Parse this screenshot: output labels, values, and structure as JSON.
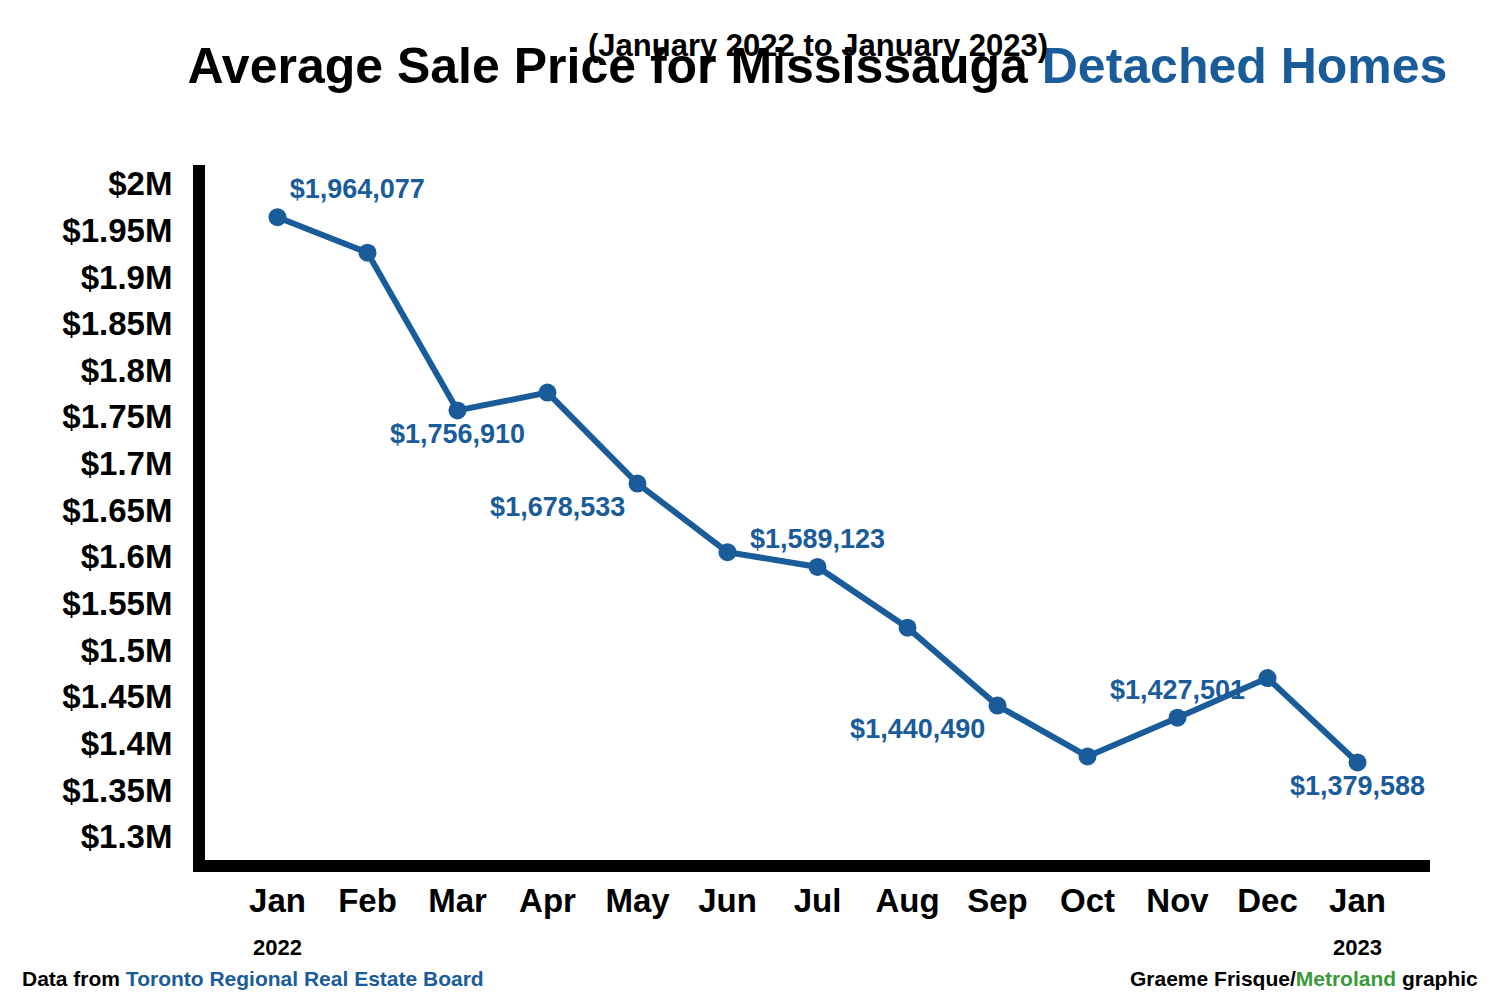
{
  "chart_data": {
    "type": "line",
    "title": "Average Sale Price for Mississauga Detached Homes",
    "title_highlight": "Detached Homes",
    "subtitle": "(January 2022 to January 2023)",
    "source": "Data from Toronto Regional Real Estate Board",
    "source_highlight": "Toronto Regional Real Estate Board",
    "credit": "Graeme Frisque/Metroland graphic",
    "credit_highlight": "Metroland",
    "categories": [
      "Jan 2022",
      "Feb",
      "Mar",
      "Apr",
      "May",
      "Jun",
      "Jul",
      "Aug",
      "Sep",
      "Oct",
      "Nov",
      "Dec",
      "Jan 2023"
    ],
    "values": [
      1964077,
      1926000,
      1756910,
      1776000,
      1678533,
      1605000,
      1589123,
      1524000,
      1440490,
      1386000,
      1427501,
      1470000,
      1379588
    ],
    "value_labels": [
      "$1,964,077",
      null,
      "$1,756,910",
      null,
      "$1,678,533",
      null,
      "$1,589,123",
      null,
      "$1,440,490",
      null,
      "$1,427,501",
      null,
      "$1,379,588"
    ],
    "color": "#1a5c9a",
    "marker": "circle",
    "line_style": "solid",
    "data_labels": true,
    "grid": false,
    "ylim": [
      1275000,
      2020000
    ],
    "yticks": [
      {
        "value": 1300000,
        "label": "$1.3M"
      },
      {
        "value": 1350000,
        "label": "$1.35M"
      },
      {
        "value": 1400000,
        "label": "$1.4M"
      },
      {
        "value": 1450000,
        "label": "$1.45M"
      },
      {
        "value": 1500000,
        "label": "$1.5M"
      },
      {
        "value": 1550000,
        "label": "$1.55M"
      },
      {
        "value": 1600000,
        "label": "$1.6M"
      },
      {
        "value": 1650000,
        "label": "$1.65M"
      },
      {
        "value": 1700000,
        "label": "$1.7M"
      },
      {
        "value": 1750000,
        "label": "$1.75M"
      },
      {
        "value": 1800000,
        "label": "$1.8M"
      },
      {
        "value": 1850000,
        "label": "$1.85M"
      },
      {
        "value": 1900000,
        "label": "$1.9M"
      },
      {
        "value": 1950000,
        "label": "$1.95M"
      },
      {
        "value": 2000000,
        "label": "$2M"
      }
    ]
  }
}
